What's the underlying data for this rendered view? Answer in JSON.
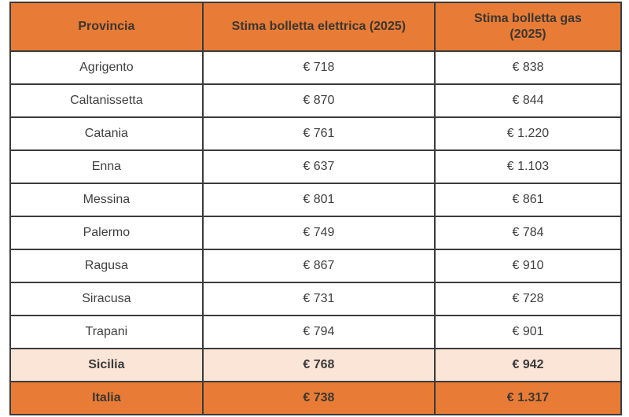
{
  "colors": {
    "header_bg": "#e87c36",
    "sicilia_row_bg": "#fbe5d6",
    "italia_row_bg": "#e87c36",
    "border": "#3b3b3b",
    "body_text": "#3f3f3f",
    "header_text": "#3e3630"
  },
  "table": {
    "headers": {
      "provincia": "Provincia",
      "elettrica": "Stima bolletta elettrica (2025)",
      "gas": "Stima bolletta gas (2025)"
    },
    "rows": [
      {
        "provincia": "Agrigento",
        "elettrica": "€ 718",
        "gas": "€ 838"
      },
      {
        "provincia": "Caltanissetta",
        "elettrica": "€ 870",
        "gas": "€ 844"
      },
      {
        "provincia": "Catania",
        "elettrica": "€ 761",
        "gas": "€ 1.220"
      },
      {
        "provincia": "Enna",
        "elettrica": "€ 637",
        "gas": "€ 1.103"
      },
      {
        "provincia": "Messina",
        "elettrica": "€ 801",
        "gas": "€ 861"
      },
      {
        "provincia": "Palermo",
        "elettrica": "€ 749",
        "gas": "€ 784"
      },
      {
        "provincia": "Ragusa",
        "elettrica": "€ 867",
        "gas": "€ 910"
      },
      {
        "provincia": "Siracusa",
        "elettrica": "€ 731",
        "gas": "€ 728"
      },
      {
        "provincia": "Trapani",
        "elettrica": "€ 794",
        "gas": "€ 901"
      },
      {
        "provincia": "Sicilia",
        "elettrica": "€ 768",
        "gas": "€ 942"
      },
      {
        "provincia": "Italia",
        "elettrica": "€ 738",
        "gas": "€ 1.317"
      }
    ]
  },
  "chart_data": {
    "type": "table",
    "columns": [
      "Provincia",
      "Stima bolletta elettrica (2025)",
      "Stima bolletta gas (2025)"
    ],
    "currency": "EUR",
    "rows": [
      [
        "Agrigento",
        718,
        838
      ],
      [
        "Caltanissetta",
        870,
        844
      ],
      [
        "Catania",
        761,
        1220
      ],
      [
        "Enna",
        637,
        1103
      ],
      [
        "Messina",
        801,
        861
      ],
      [
        "Palermo",
        749,
        784
      ],
      [
        "Ragusa",
        867,
        910
      ],
      [
        "Siracusa",
        731,
        728
      ],
      [
        "Trapani",
        794,
        901
      ],
      [
        "Sicilia",
        768,
        942
      ],
      [
        "Italia",
        738,
        1317
      ]
    ],
    "summary_rows": [
      "Sicilia",
      "Italia"
    ],
    "legend_position": "none",
    "grid": true
  }
}
